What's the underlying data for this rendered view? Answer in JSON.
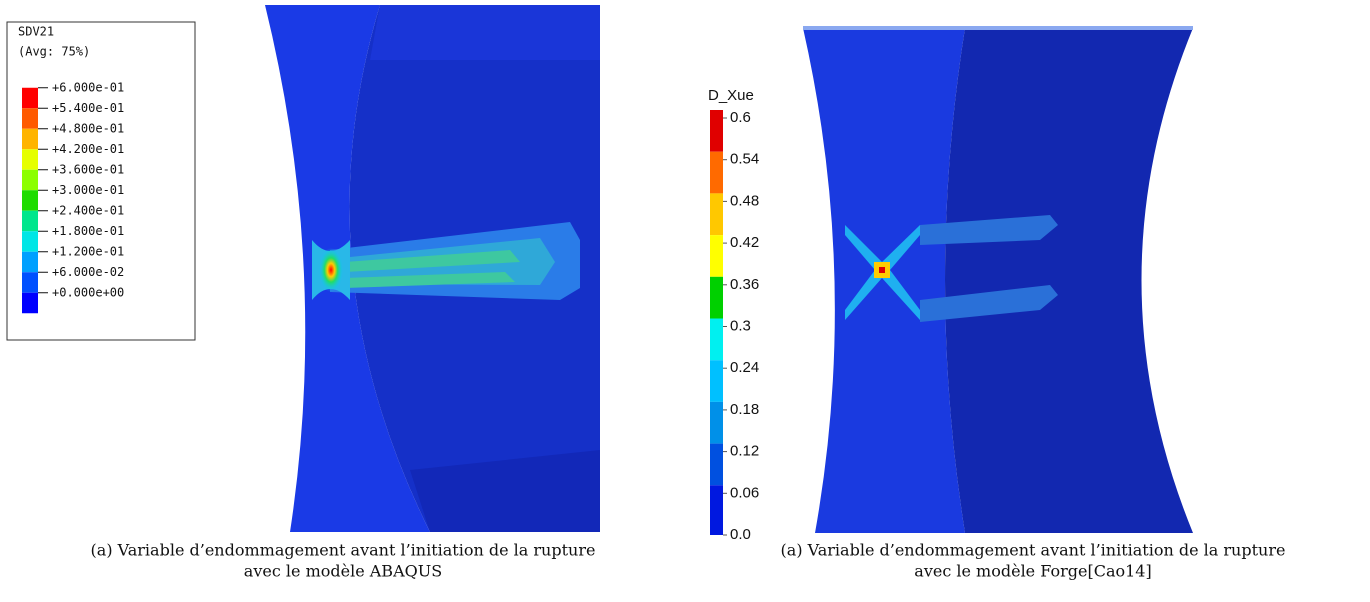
{
  "left": {
    "legend": {
      "title": "SDV21",
      "subtitle": "(Avg: 75%)",
      "entries": [
        {
          "label": "+6.000e-01",
          "color": "#ff0000"
        },
        {
          "label": "+5.400e-01",
          "color": "#ff5a00"
        },
        {
          "label": "+4.800e-01",
          "color": "#ffb400"
        },
        {
          "label": "+4.200e-01",
          "color": "#e6ff00"
        },
        {
          "label": "+3.600e-01",
          "color": "#8cff00"
        },
        {
          "label": "+3.000e-01",
          "color": "#1edc00"
        },
        {
          "label": "+2.400e-01",
          "color": "#00e68c"
        },
        {
          "label": "+1.800e-01",
          "color": "#00e6e6"
        },
        {
          "label": "+1.200e-01",
          "color": "#00a0ff"
        },
        {
          "label": "+6.000e-02",
          "color": "#0050ff"
        },
        {
          "label": "+0.000e+00",
          "color": "#0000ff"
        }
      ]
    },
    "caption": [
      "(a) Variable d’endommagement avant l’initiation de la rupture",
      "avec le modèle ABAQUS"
    ]
  },
  "right": {
    "colorbar": {
      "title": "D_Xue",
      "ticks": [
        "0.6",
        "0.54",
        "0.48",
        "0.42",
        "0.36",
        "0.3",
        "0.24",
        "0.18",
        "0.12",
        "0.06",
        "0.0"
      ],
      "colors": [
        "#e00000",
        "#ff6a00",
        "#ffc800",
        "#ffff00",
        "#00d000",
        "#00f0f0",
        "#00c0ff",
        "#0090e8",
        "#0050e0",
        "#0018e0"
      ]
    },
    "caption": [
      "(a) Variable d’endommagement avant l’initiation de la rupture",
      "avec le modèle Forge[Cao14]"
    ]
  }
}
